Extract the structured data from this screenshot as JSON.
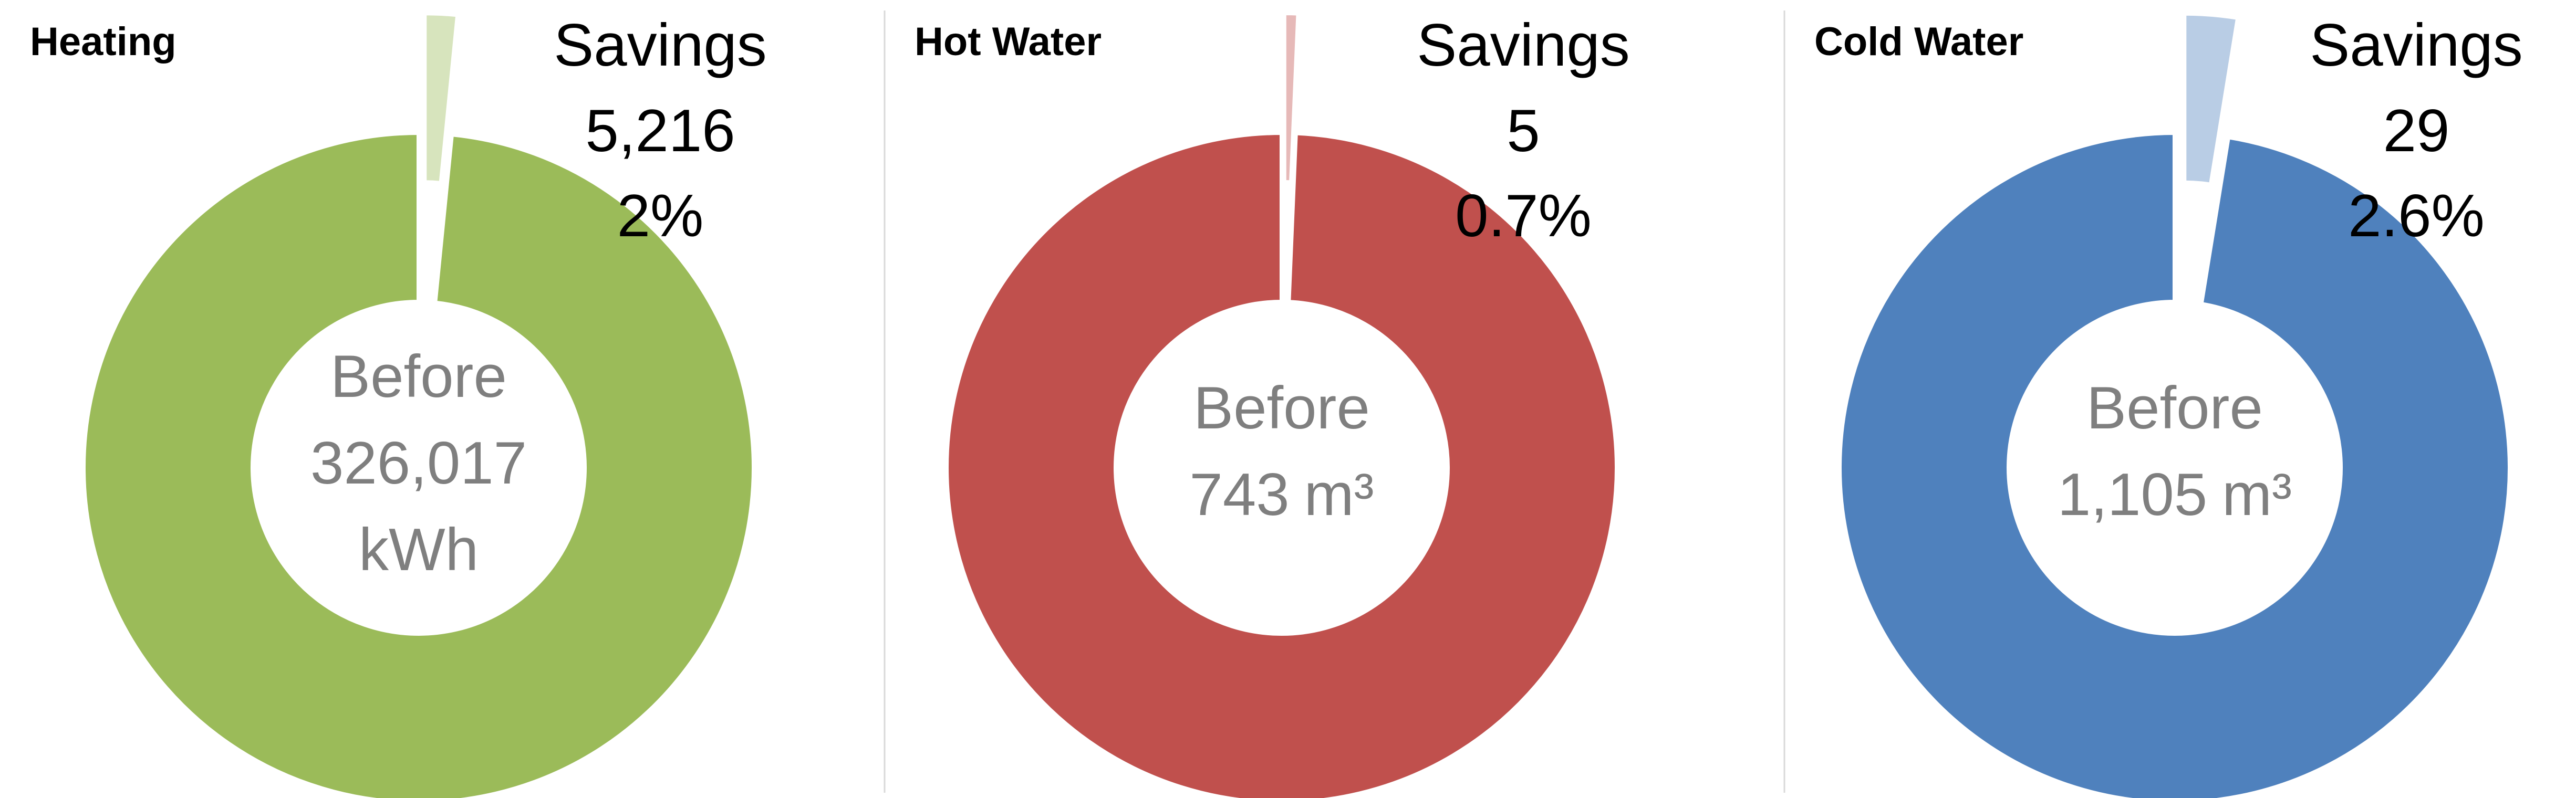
{
  "chart_data": [
    {
      "type": "donut",
      "title": "Heating",
      "categories": [
        "Savings",
        "Before"
      ],
      "values": [
        5216,
        326017
      ],
      "value_labels": [
        "5,216",
        "326,017"
      ],
      "savings_percent": {
        "value": 2,
        "label": "2%"
      },
      "unit": "kWh",
      "colors": [
        "#d7e4bd",
        "#9bbb59"
      ]
    },
    {
      "type": "donut",
      "title": "Hot Water",
      "categories": [
        "Savings",
        "Before"
      ],
      "values": [
        5,
        743
      ],
      "value_labels": [
        "5",
        "743"
      ],
      "savings_percent": {
        "value": 0.7,
        "label": "0.7%"
      },
      "unit": "m³",
      "colors": [
        "#e6b9b8",
        "#c0504d"
      ]
    },
    {
      "type": "donut",
      "title": "Cold Water",
      "categories": [
        "Savings",
        "Before"
      ],
      "values": [
        29,
        1105
      ],
      "value_labels": [
        "29",
        "1,105"
      ],
      "savings_percent": {
        "value": 2.6,
        "label": "2.6%"
      },
      "unit": "m³",
      "colors": [
        "#b9cde5",
        "#4f81bd"
      ]
    }
  ]
}
